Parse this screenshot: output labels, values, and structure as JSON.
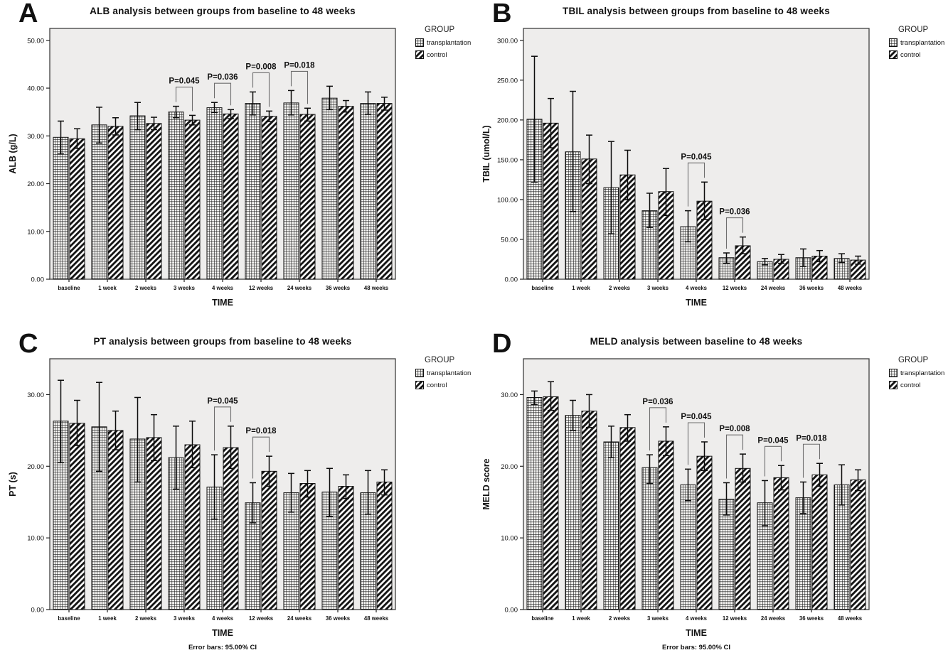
{
  "page": {
    "background": "#ffffff",
    "plot_background": "#eeedec",
    "bar_outline": "#111111",
    "bracket_color": "#6e6e6e"
  },
  "legend": {
    "title": "GROUP",
    "items": [
      {
        "label": "transplantation",
        "pattern": "grid"
      },
      {
        "label": "control",
        "pattern": "diagonal"
      }
    ]
  },
  "chart_data": [
    {
      "panel_label": "A",
      "type": "bar",
      "title": "ALB analysis between groups from baseline to 48 weeks",
      "xlabel": "TIME",
      "ylabel": "ALB (g/L)",
      "ylim": [
        0,
        52.5
      ],
      "yticks": [
        0,
        10,
        20,
        30,
        40,
        50
      ],
      "categories": [
        "baseline",
        "1 week",
        "2 weeks",
        "3 weeks",
        "4 weeks",
        "12 weeks",
        "24 weeks",
        "36 weeks",
        "48 weeks"
      ],
      "error_bars": "95.00% CI",
      "series": [
        {
          "name": "transplantation",
          "values": [
            29.7,
            32.3,
            34.2,
            35.0,
            35.9,
            36.8,
            36.9,
            37.9,
            36.8
          ],
          "ci_low": [
            26.2,
            28.5,
            31.3,
            33.8,
            34.9,
            34.4,
            34.4,
            35.5,
            34.5
          ],
          "ci_high": [
            33.1,
            36.0,
            37.0,
            36.2,
            37.0,
            39.2,
            39.5,
            40.4,
            39.2
          ]
        },
        {
          "name": "control",
          "values": [
            29.4,
            32.0,
            32.6,
            33.3,
            34.6,
            34.1,
            34.5,
            36.2,
            36.8
          ],
          "ci_low": [
            27.4,
            30.2,
            31.3,
            32.3,
            33.6,
            33.0,
            33.1,
            35.0,
            35.4
          ],
          "ci_high": [
            31.5,
            33.8,
            33.9,
            34.3,
            35.5,
            35.2,
            35.8,
            37.4,
            38.1
          ]
        }
      ],
      "annotations": [
        {
          "category_index": 3,
          "label": "P=0.045"
        },
        {
          "category_index": 4,
          "label": "P=0.036"
        },
        {
          "category_index": 5,
          "label": "P=0.008"
        },
        {
          "category_index": 6,
          "label": "P=0.018"
        }
      ],
      "footnote": null
    },
    {
      "panel_label": "B",
      "type": "bar",
      "title": "TBIL analysis between groups from baseline to 48 weeks",
      "xlabel": "TIME",
      "ylabel": "TBIL (umol/L)",
      "ylim": [
        0,
        315
      ],
      "yticks": [
        0,
        50,
        100,
        150,
        200,
        250,
        300
      ],
      "categories": [
        "baseline",
        "1 week",
        "2 weeks",
        "3 weeks",
        "4 weeks",
        "12 weeks",
        "24 weeks",
        "36 weeks",
        "48 weeks"
      ],
      "error_bars": "95.00% CI",
      "series": [
        {
          "name": "transplantation",
          "values": [
            201,
            160,
            115,
            86,
            66,
            27,
            22,
            27,
            26
          ],
          "ci_low": [
            122,
            85,
            57,
            65,
            47,
            20,
            18,
            16,
            21
          ],
          "ci_high": [
            280,
            236,
            173,
            108,
            86,
            33,
            26,
            38,
            32
          ]
        },
        {
          "name": "control",
          "values": [
            196,
            151,
            131,
            110,
            98,
            42,
            25,
            29,
            24
          ],
          "ci_low": [
            165,
            120,
            100,
            80,
            75,
            32,
            20,
            22,
            19
          ],
          "ci_high": [
            227,
            181,
            162,
            139,
            122,
            53,
            31,
            36,
            29
          ]
        }
      ],
      "annotations": [
        {
          "category_index": 4,
          "label": "P=0.045"
        },
        {
          "category_index": 5,
          "label": "P=0.036"
        }
      ],
      "footnote": null
    },
    {
      "panel_label": "C",
      "type": "bar",
      "title": "PT analysis between groups from baseline to 48 weeks",
      "xlabel": "TIME",
      "ylabel": "PT (s)",
      "ylim": [
        0,
        35
      ],
      "yticks": [
        0,
        10,
        20,
        30
      ],
      "categories": [
        "baseline",
        "1 week",
        "2 weeks",
        "3 weeks",
        "4 weeks",
        "12 weeks",
        "24 weeks",
        "36 weeks",
        "48 weeks"
      ],
      "error_bars": "95.00% CI",
      "series": [
        {
          "name": "transplantation",
          "values": [
            26.3,
            25.5,
            23.8,
            21.2,
            17.1,
            14.9,
            16.3,
            16.4,
            16.3
          ],
          "ci_low": [
            20.5,
            19.3,
            17.8,
            16.8,
            12.6,
            12.1,
            13.6,
            13.0,
            13.3
          ],
          "ci_high": [
            32.0,
            31.7,
            29.6,
            25.6,
            21.6,
            17.7,
            19.0,
            19.7,
            19.4
          ]
        },
        {
          "name": "control",
          "values": [
            26.0,
            25.0,
            24.0,
            23.0,
            22.6,
            19.3,
            17.6,
            17.2,
            17.8
          ],
          "ci_low": [
            22.9,
            22.3,
            20.8,
            19.8,
            19.7,
            17.2,
            15.7,
            15.5,
            16.0
          ],
          "ci_high": [
            29.2,
            27.7,
            27.2,
            26.3,
            25.6,
            21.4,
            19.4,
            18.8,
            19.5
          ]
        }
      ],
      "annotations": [
        {
          "category_index": 4,
          "label": "P=0.045"
        },
        {
          "category_index": 5,
          "label": "P=0.018"
        }
      ],
      "footnote": "Error bars: 95.00% CI"
    },
    {
      "panel_label": "D",
      "type": "bar",
      "title": "MELD analysis between baseline to 48 weeks",
      "xlabel": "TIME",
      "ylabel": "MELD score",
      "ylim": [
        0,
        35
      ],
      "yticks": [
        0,
        10,
        20,
        30
      ],
      "categories": [
        "baseline",
        "1 week",
        "2 weeks",
        "3 weeks",
        "4 weeks",
        "12 weeks",
        "24 weeks",
        "36 weeks",
        "48 weeks"
      ],
      "error_bars": "95.00% CI",
      "series": [
        {
          "name": "transplantation",
          "values": [
            29.6,
            27.1,
            23.4,
            19.8,
            17.4,
            15.4,
            14.9,
            15.6,
            17.4
          ],
          "ci_low": [
            28.6,
            25.0,
            21.2,
            17.6,
            15.2,
            13.2,
            11.7,
            13.4,
            14.6
          ],
          "ci_high": [
            30.5,
            29.2,
            25.6,
            21.6,
            19.6,
            17.7,
            18.0,
            17.8,
            20.2
          ]
        },
        {
          "name": "control",
          "values": [
            29.7,
            27.7,
            25.4,
            23.5,
            21.4,
            19.7,
            18.4,
            18.8,
            18.1
          ],
          "ci_low": [
            27.8,
            25.4,
            23.5,
            21.5,
            19.4,
            17.8,
            16.7,
            17.2,
            16.6
          ],
          "ci_high": [
            31.8,
            30.0,
            27.2,
            25.5,
            23.4,
            21.7,
            20.1,
            20.4,
            19.5
          ]
        }
      ],
      "annotations": [
        {
          "category_index": 3,
          "label": "P=0.036"
        },
        {
          "category_index": 4,
          "label": "P=0.045"
        },
        {
          "category_index": 5,
          "label": "P=0.008"
        },
        {
          "category_index": 6,
          "label": "P=0.045"
        },
        {
          "category_index": 7,
          "label": "P=0.018"
        }
      ],
      "footnote": "Error bars: 95.00% CI"
    }
  ]
}
